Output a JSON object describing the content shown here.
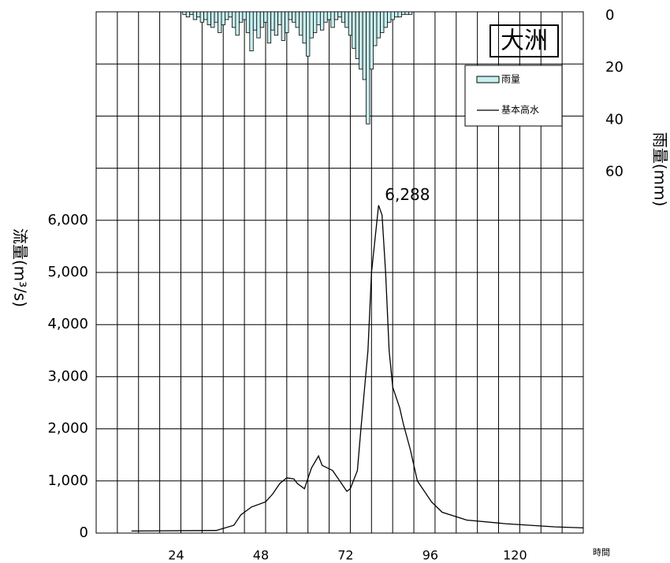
{
  "chart_data": {
    "type": "line",
    "title": "大洲",
    "ylabel": "流量(m³/s)",
    "y2label": "雨量(mm)",
    "xlabel": "時間",
    "xlim": [
      0,
      138
    ],
    "xticks": [
      24,
      48,
      72,
      96,
      120
    ],
    "xgrid": [
      6,
      12,
      18,
      24,
      30,
      36,
      42,
      48,
      54,
      60,
      66,
      72,
      78,
      84,
      90,
      96,
      102,
      108,
      114,
      120,
      126,
      132
    ],
    "ylim": [
      0,
      10000
    ],
    "yticks": [
      0,
      {
        "value": 1000,
        "label": "1,000"
      },
      {
        "value": 2000,
        "label": "2,000"
      },
      {
        "value": 3000,
        "label": "3,000"
      },
      {
        "value": 4000,
        "label": "4,000"
      },
      {
        "value": 5000,
        "label": "5,000"
      },
      {
        "value": 6000,
        "label": "6,000"
      }
    ],
    "y2lim": [
      200,
      0
    ],
    "y2ticks": [
      0,
      20,
      40,
      60
    ],
    "grid": true,
    "legend": "top-right",
    "series": [
      {
        "name": "雨量",
        "type": "bar",
        "axis": "y2",
        "color": "#c8f0f0",
        "x": [
          25,
          26,
          27,
          28,
          29,
          30,
          31,
          32,
          33,
          34,
          35,
          36,
          37,
          38,
          39,
          40,
          41,
          42,
          43,
          44,
          45,
          46,
          47,
          48,
          49,
          50,
          51,
          52,
          53,
          54,
          55,
          56,
          57,
          58,
          59,
          60,
          61,
          62,
          63,
          64,
          65,
          66,
          67,
          68,
          69,
          70,
          71,
          72,
          73,
          74,
          75,
          76,
          77,
          78,
          79,
          80,
          81,
          82,
          83,
          84,
          85,
          86,
          87,
          88,
          89
        ],
        "values": [
          1,
          2,
          1,
          3,
          2,
          4,
          3,
          5,
          6,
          4,
          8,
          5,
          3,
          2,
          6,
          9,
          4,
          3,
          8,
          15,
          7,
          10,
          6,
          4,
          12,
          7,
          9,
          5,
          11,
          8,
          3,
          4,
          6,
          9,
          12,
          17,
          10,
          8,
          5,
          7,
          4,
          3,
          6,
          3,
          2,
          4,
          6,
          9,
          14,
          18,
          22,
          26,
          43,
          22,
          13,
          10,
          8,
          6,
          4,
          3,
          2,
          2,
          1,
          1,
          1
        ]
      },
      {
        "name": "基本高水",
        "type": "line",
        "color": "#000000",
        "x": [
          10,
          34,
          39,
          41,
          44,
          48,
          50,
          52,
          54,
          56,
          57,
          59,
          61,
          63,
          64,
          67,
          69,
          71,
          72,
          74,
          75,
          77,
          78,
          80,
          81,
          82,
          83,
          84,
          86,
          87,
          89,
          91,
          95,
          98,
          105,
          116,
          130,
          138
        ],
        "values": [
          40,
          50,
          150,
          350,
          500,
          600,
          750,
          950,
          1060,
          1040,
          950,
          850,
          1250,
          1480,
          1300,
          1200,
          1000,
          800,
          850,
          1200,
          2000,
          3500,
          5000,
          6288,
          6100,
          5000,
          3500,
          2800,
          2400,
          2100,
          1600,
          1000,
          600,
          400,
          250,
          180,
          120,
          100
        ],
        "value_labels": [
          null,
          null,
          null,
          null,
          null,
          null,
          null,
          null,
          null,
          null,
          null,
          null,
          null,
          null,
          null,
          null,
          null,
          null,
          null,
          null,
          null,
          null,
          null,
          "6,288",
          null,
          null,
          null,
          null,
          null,
          null,
          null,
          null,
          null,
          null,
          null,
          null,
          null,
          null
        ]
      }
    ]
  }
}
